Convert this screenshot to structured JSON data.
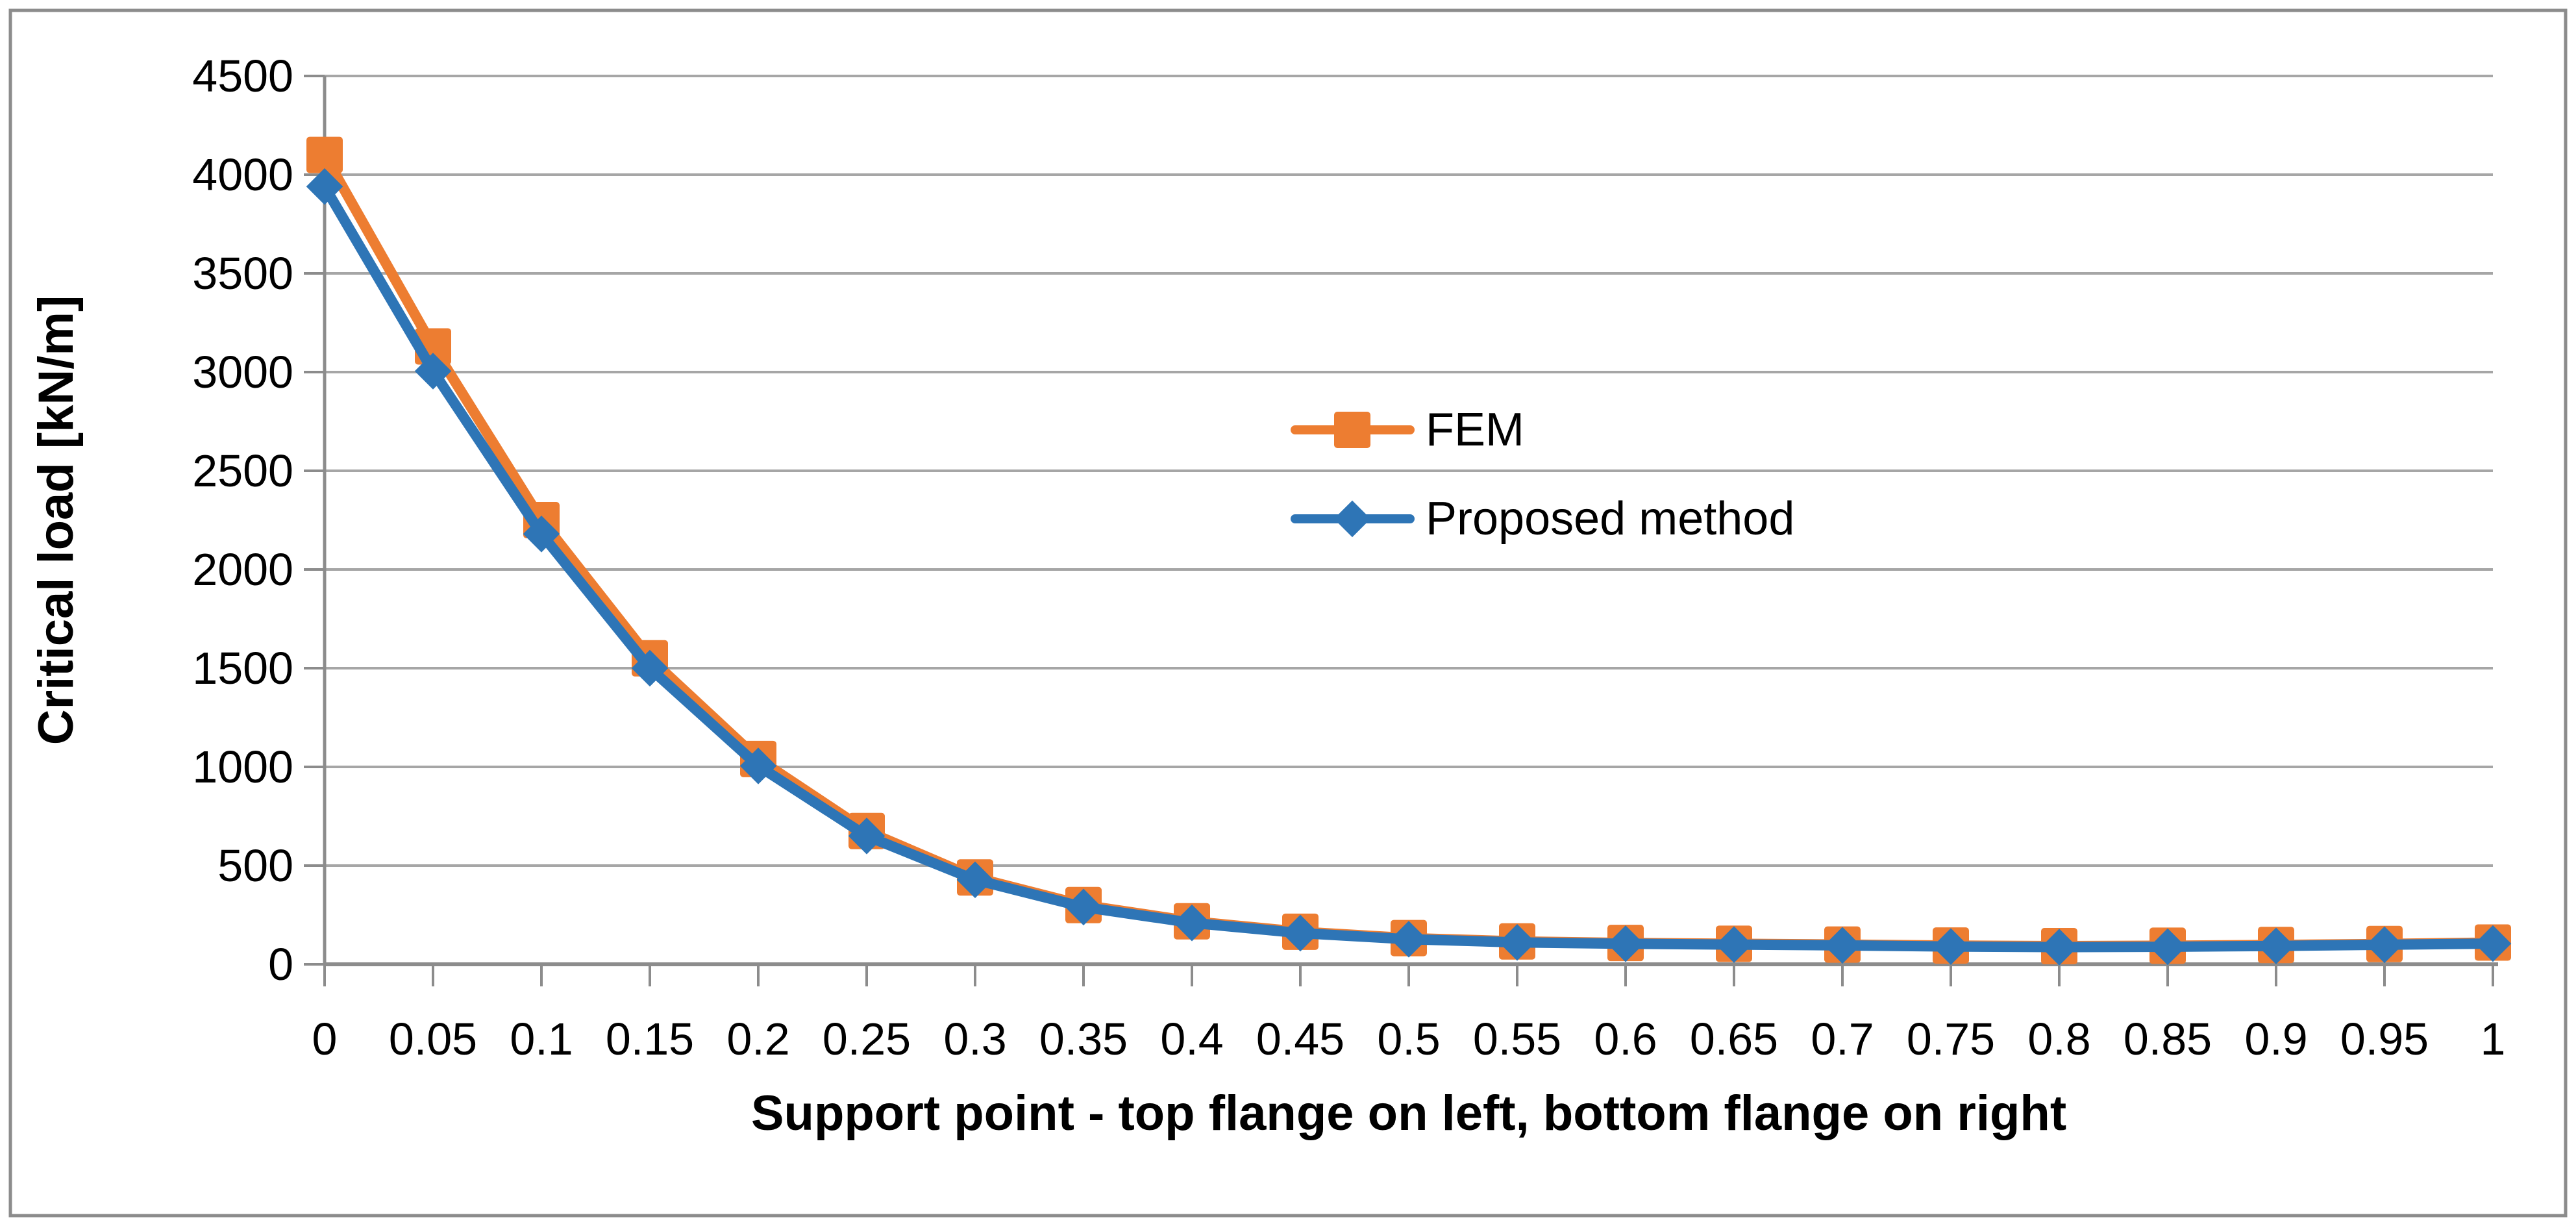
{
  "figure": {
    "background": "#FFFFFF",
    "frame_color": "#8C8C8C",
    "grid_color": "#A6A6A6",
    "axis_color": "#8C8C8C",
    "text_color": "#000000"
  },
  "axes": {
    "x_title": "Support point - top flange on left, bottom flange on right",
    "y_title": "Critical load [kN/m]"
  },
  "legend": {
    "items": [
      {
        "label": "FEM",
        "marker": "square",
        "color": "#ED7D31"
      },
      {
        "label": "Proposed method",
        "marker": "diamond",
        "color": "#2E75B6"
      }
    ]
  },
  "chart_data": {
    "type": "line",
    "title": "",
    "xlabel": "Support point - top flange on left, bottom flange on right",
    "ylabel": "Critical load [kN/m]",
    "xlim": [
      0,
      1
    ],
    "ylim": [
      0,
      4500
    ],
    "ytick_step": 500,
    "grid": "horizontal",
    "legend_position": "inside-center",
    "x": [
      0,
      0.05,
      0.1,
      0.15,
      0.2,
      0.25,
      0.3,
      0.35,
      0.4,
      0.45,
      0.5,
      0.55,
      0.6,
      0.65,
      0.7,
      0.75,
      0.8,
      0.85,
      0.9,
      0.95,
      1
    ],
    "x_tick_labels": [
      "0",
      "0.05",
      "0.1",
      "0.15",
      "0.2",
      "0.25",
      "0.3",
      "0.35",
      "0.4",
      "0.45",
      "0.5",
      "0.55",
      "0.6",
      "0.65",
      "0.7",
      "0.75",
      "0.8",
      "0.85",
      "0.9",
      "0.95",
      "1"
    ],
    "y_tick_labels": [
      "0",
      "500",
      "1000",
      "1500",
      "2000",
      "2500",
      "3000",
      "3500",
      "4000",
      "4500"
    ],
    "series": [
      {
        "name": "FEM",
        "color": "#ED7D31",
        "marker": "square",
        "values": [
          4100,
          3130,
          2250,
          1550,
          1040,
          675,
          440,
          300,
          218,
          165,
          133,
          116,
          108,
          104,
          100,
          95,
          92,
          94,
          98,
          103,
          110
        ]
      },
      {
        "name": "Proposed method",
        "color": "#2E75B6",
        "marker": "diamond",
        "values": [
          3940,
          3005,
          2180,
          1500,
          1005,
          650,
          428,
          290,
          210,
          158,
          127,
          111,
          104,
          100,
          96,
          90,
          87,
          89,
          93,
          99,
          105
        ]
      }
    ]
  }
}
